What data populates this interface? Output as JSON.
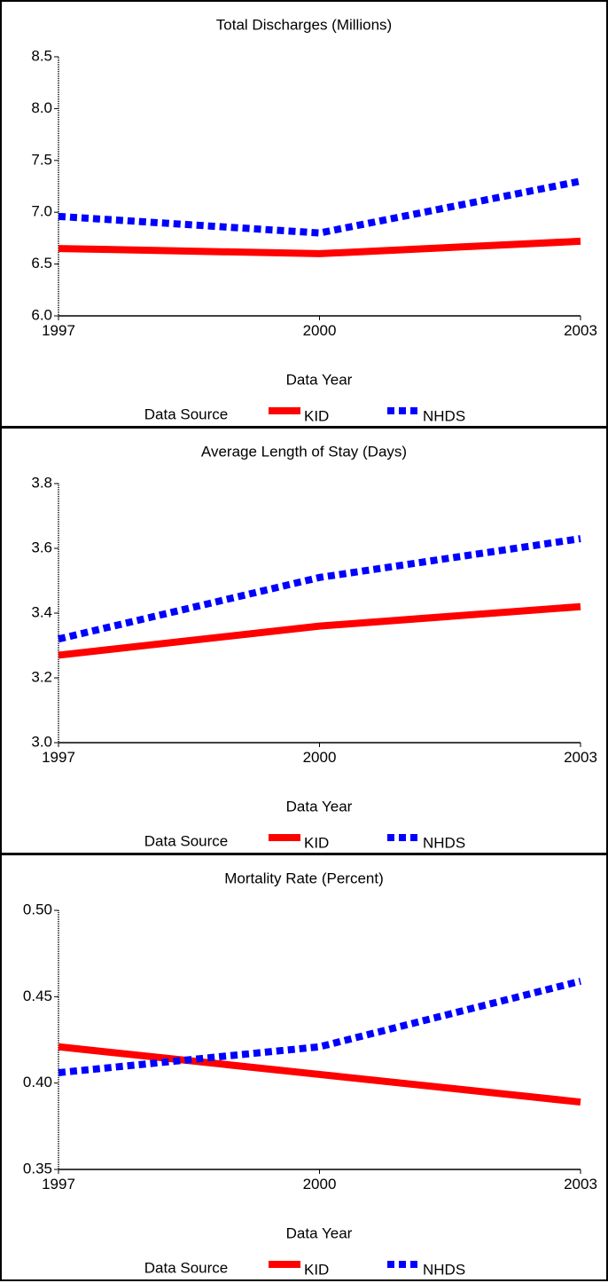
{
  "chart_data": [
    {
      "type": "line",
      "title": "Total Discharges (Millions)",
      "x_label": "Data Year",
      "legend_title": "Data Source",
      "x": [
        1997,
        2000,
        2003
      ],
      "xlim": [
        1997,
        2003
      ],
      "xticks": [
        1997,
        2000,
        2003
      ],
      "ylim": [
        6.0,
        8.5
      ],
      "yticks": [
        {
          "value": 6,
          "label": "6.0"
        },
        6.5,
        {
          "value": 7,
          "label": "7.0"
        },
        7.5,
        {
          "value": 8,
          "label": "8.0"
        },
        8.5
      ],
      "series": [
        {
          "name": "KID",
          "color": "#ff0000",
          "values": [
            6.65,
            6.6,
            6.72
          ]
        },
        {
          "name": "NHDS",
          "color": "#0000ff",
          "values": [
            6.96,
            6.8,
            7.3
          ]
        }
      ]
    },
    {
      "type": "line",
      "title": "Average Length of Stay (Days)",
      "x_label": "Data Year",
      "legend_title": "Data Source",
      "x": [
        1997,
        2000,
        2003
      ],
      "xlim": [
        1997,
        2003
      ],
      "xticks": [
        1997,
        2000,
        2003
      ],
      "ylim": [
        3.0,
        3.8
      ],
      "yticks": [
        {
          "value": 3,
          "label": "3.0"
        },
        3.2,
        3.4,
        3.6,
        3.8
      ],
      "series": [
        {
          "name": "KID",
          "color": "#ff0000",
          "values": [
            3.27,
            3.36,
            3.42
          ]
        },
        {
          "name": "NHDS",
          "color": "#0000ff",
          "values": [
            3.32,
            3.51,
            3.63
          ]
        }
      ]
    },
    {
      "type": "line",
      "title": "Mortality Rate (Percent)",
      "x_label": "Data Year",
      "legend_title": "Data Source",
      "x": [
        1997,
        2000,
        2003
      ],
      "xlim": [
        1997,
        2003
      ],
      "xticks": [
        1997,
        2000,
        2003
      ],
      "ylim": [
        0.35,
        0.5
      ],
      "yticks": [
        {
          "value": 0.35,
          "label": "0.35"
        },
        {
          "value": 0.4,
          "label": "0.40"
        },
        {
          "value": 0.45,
          "label": "0.45"
        },
        {
          "value": 0.5,
          "label": "0.50"
        }
      ],
      "series": [
        {
          "name": "KID",
          "color": "#ff0000",
          "values": [
            0.421,
            0.405,
            0.389
          ]
        },
        {
          "name": "NHDS",
          "color": "#0000ff",
          "values": [
            0.406,
            0.421,
            0.459
          ]
        }
      ]
    }
  ]
}
